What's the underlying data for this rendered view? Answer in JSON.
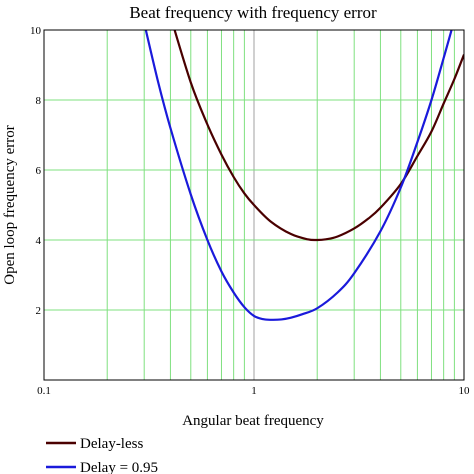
{
  "chart_data": {
    "type": "line",
    "title": "Beat frequency with frequency error",
    "xlabel": "Angular beat frequency",
    "ylabel": "Open loop frequency error",
    "x_scale": "log",
    "xlim": [
      0.1,
      10
    ],
    "ylim": [
      0,
      10
    ],
    "x_tick_labels": [
      "0.1",
      "1",
      "10"
    ],
    "y_tick_labels": [
      "2",
      "4",
      "6",
      "8",
      "10"
    ],
    "grid": true,
    "grid_color": "#7fe07f",
    "legend_position": "bottom-left",
    "series": [
      {
        "name": "Delay-less",
        "color": "#4a0000",
        "x": [
          0.4,
          0.5,
          0.6,
          0.7,
          0.8,
          0.9,
          1.0,
          1.2,
          1.5,
          1.8,
          2.0,
          2.2,
          2.5,
          3.0,
          3.5,
          4.0,
          5.0,
          6.0,
          7.0,
          8.0,
          9.0,
          10.0
        ],
        "y": [
          10.4,
          8.5,
          7.3,
          6.44,
          5.8,
          5.33,
          5.0,
          4.53,
          4.17,
          4.02,
          4.0,
          4.02,
          4.1,
          4.33,
          4.61,
          4.92,
          5.6,
          6.4,
          7.1,
          7.9,
          8.6,
          9.3
        ]
      },
      {
        "name": "Delay = 0.95",
        "color": "#1a1adb",
        "x": [
          0.3,
          0.35,
          0.4,
          0.5,
          0.6,
          0.7,
          0.8,
          0.9,
          1.0,
          1.1,
          1.2,
          1.35,
          1.5,
          1.7,
          2.0,
          2.5,
          3.0,
          4.0,
          5.0,
          6.0,
          7.0,
          8.0,
          9.0,
          10.0
        ],
        "y": [
          10.2,
          8.5,
          7.2,
          5.3,
          4.0,
          3.1,
          2.5,
          2.08,
          1.83,
          1.74,
          1.72,
          1.73,
          1.78,
          1.88,
          2.05,
          2.5,
          3.05,
          4.25,
          5.5,
          6.8,
          8.0,
          9.2,
          10.3,
          11.4
        ]
      }
    ]
  }
}
